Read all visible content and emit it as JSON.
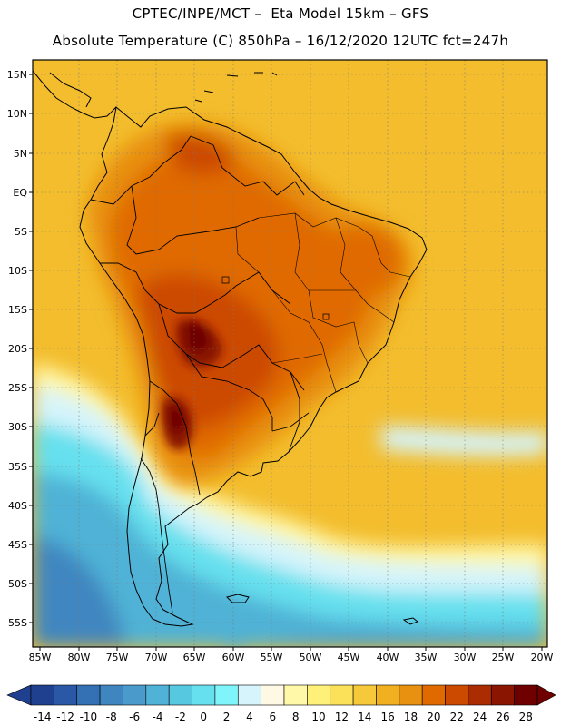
{
  "header": {
    "line1": "CPTEC/INPE/MCT –  Eta Model 15km – GFS",
    "line2": "Absolute Temperature (C) 850hPa – 16/12/2020 12UTC fct=247h"
  },
  "axes": {
    "lat_labels": [
      "15N",
      "10N",
      "5N",
      "EQ",
      "5S",
      "10S",
      "15S",
      "20S",
      "25S",
      "30S",
      "35S",
      "40S",
      "45S",
      "50S",
      "55S"
    ],
    "lon_labels": [
      "85W",
      "80W",
      "75W",
      "70W",
      "65W",
      "60W",
      "55W",
      "50W",
      "45W",
      "40W",
      "35W",
      "30W",
      "25W",
      "20W"
    ]
  },
  "colorbar": {
    "tick_labels": [
      "-14",
      "-12",
      "-10",
      "-8",
      "-6",
      "-4",
      "-2",
      "0",
      "2",
      "4",
      "6",
      "8",
      "10",
      "12",
      "14",
      "16",
      "18",
      "20",
      "22",
      "24",
      "26",
      "28"
    ],
    "colors": [
      "#1f3f8f",
      "#2a58a6",
      "#3470b4",
      "#3f86c0",
      "#4a9bcb",
      "#4fb2d6",
      "#56c8e0",
      "#66e0ee",
      "#7ff4fb",
      "#d5f4fb",
      "#fff8e4",
      "#fff8a8",
      "#fff07a",
      "#fbe05a",
      "#f5c93a",
      "#f0b020",
      "#e89010",
      "#e06a00",
      "#cc4a00",
      "#aa2c00",
      "#8a1500",
      "#6e0000"
    ]
  }
}
